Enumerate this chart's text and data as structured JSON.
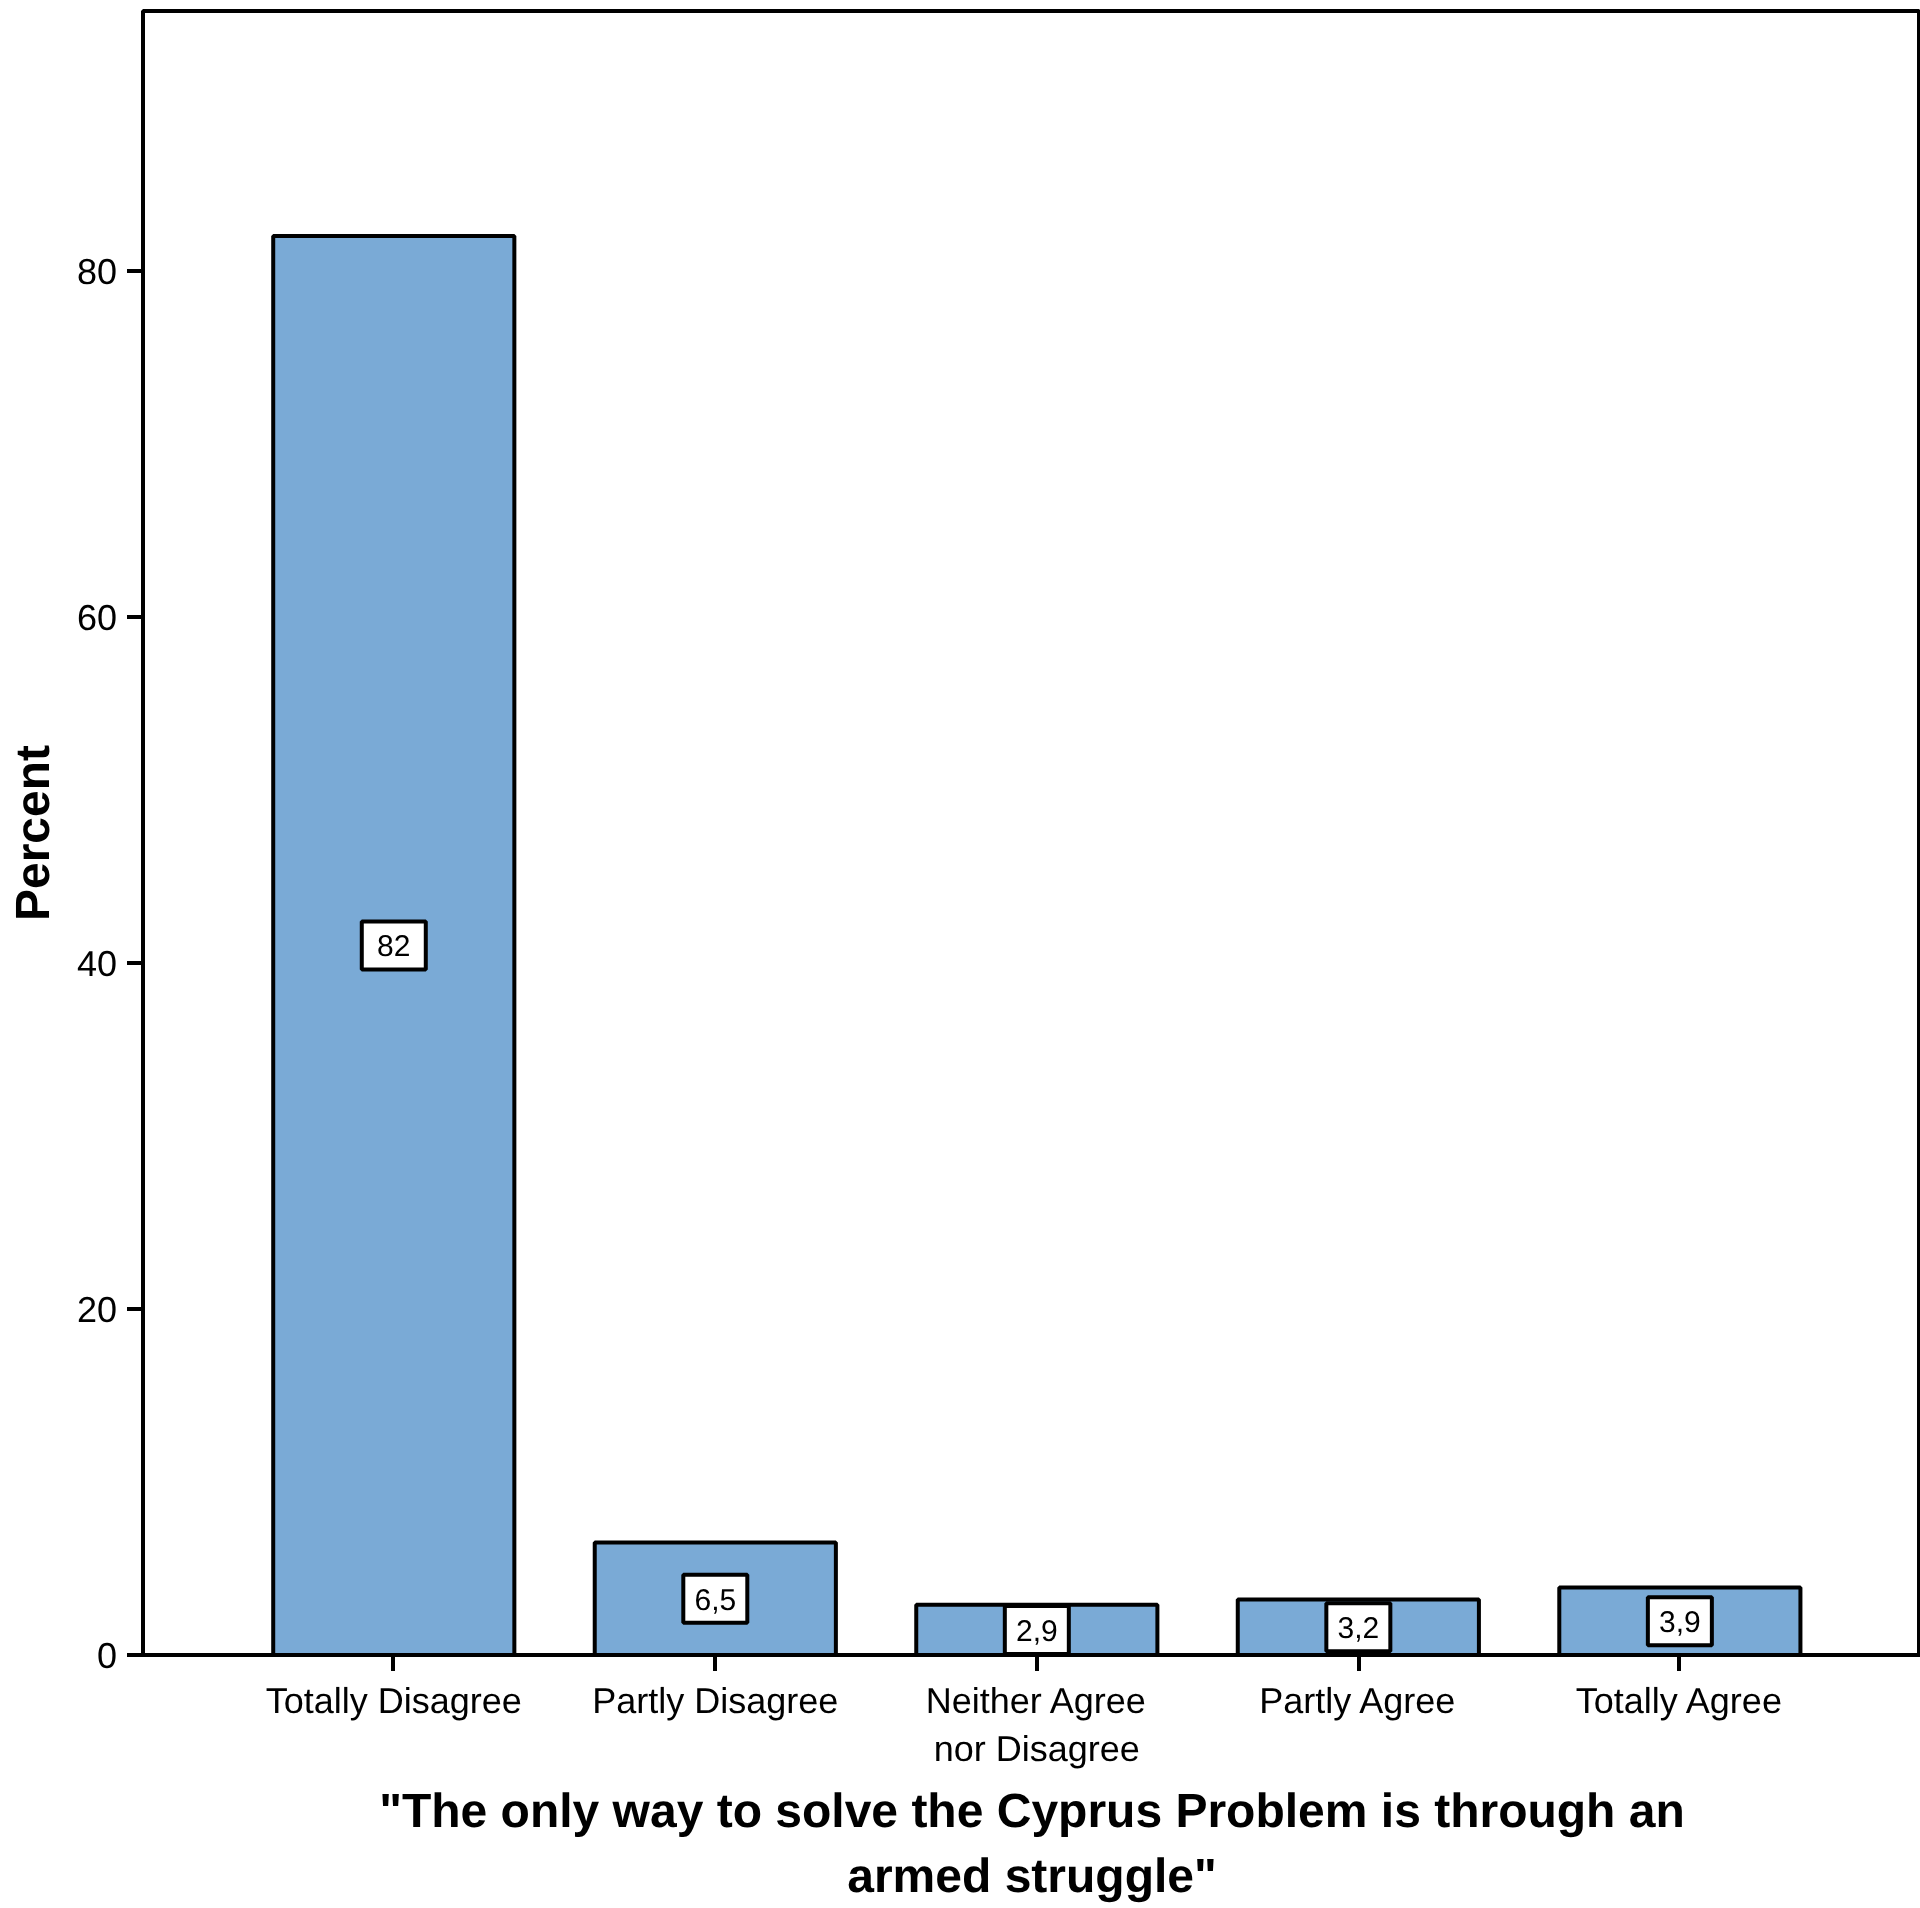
{
  "chart_data": {
    "type": "bar",
    "xlabel": "\"The only way to solve the Cyprus Problem is through an armed struggle\"",
    "ylabel": "Percent",
    "categories": [
      "Totally Disagree",
      "Partly Disagree",
      "Neither Agree nor Disagree",
      "Partly Agree",
      "Totally Agree"
    ],
    "values": [
      82,
      6.5,
      2.9,
      3.2,
      3.9
    ],
    "value_labels": [
      "82",
      "6,5",
      "2,9",
      "3,2",
      "3,9"
    ],
    "color": "#7aaad6",
    "ylim": [
      0,
      95
    ],
    "yticks": [
      0,
      20,
      40,
      60,
      80
    ],
    "grid": false
  }
}
